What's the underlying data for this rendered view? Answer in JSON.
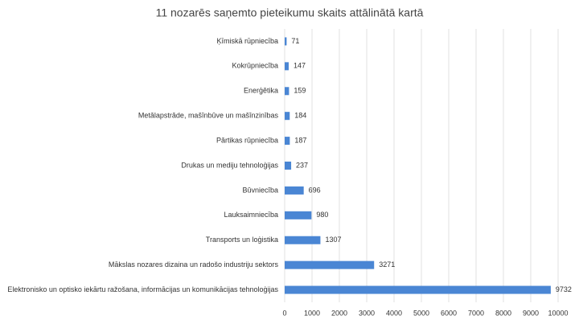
{
  "chart_data": {
    "type": "bar",
    "orientation": "horizontal",
    "title": "11 nozarēs saņemto pieteikumu skaits attālinātā kartā",
    "categories": [
      "Ķīmiskā rūpniecība",
      "Kokrūpniecība",
      "Enerģētika",
      "Metālapstrāde, mašīnbūve un mašīnzinības",
      "Pārtikas rūpniecība",
      "Drukas un mediju tehnoloģijas",
      "Būvniecība",
      "Lauksaimniecība",
      "Transports un loģistika",
      "Mākslas nozares dizaina un radošo industriju sektors",
      "Elektronisko un optisko iekārtu ražošana, informācijas un komunikācijas tehnoloģijas"
    ],
    "values": [
      71,
      147,
      159,
      184,
      187,
      237,
      696,
      980,
      1307,
      3271,
      9732
    ],
    "color": "#4a86d4",
    "xlim": [
      0,
      10000
    ],
    "xticks": [
      0,
      1000,
      2000,
      3000,
      4000,
      5000,
      6000,
      7000,
      8000,
      9000,
      10000
    ],
    "grid": true
  }
}
